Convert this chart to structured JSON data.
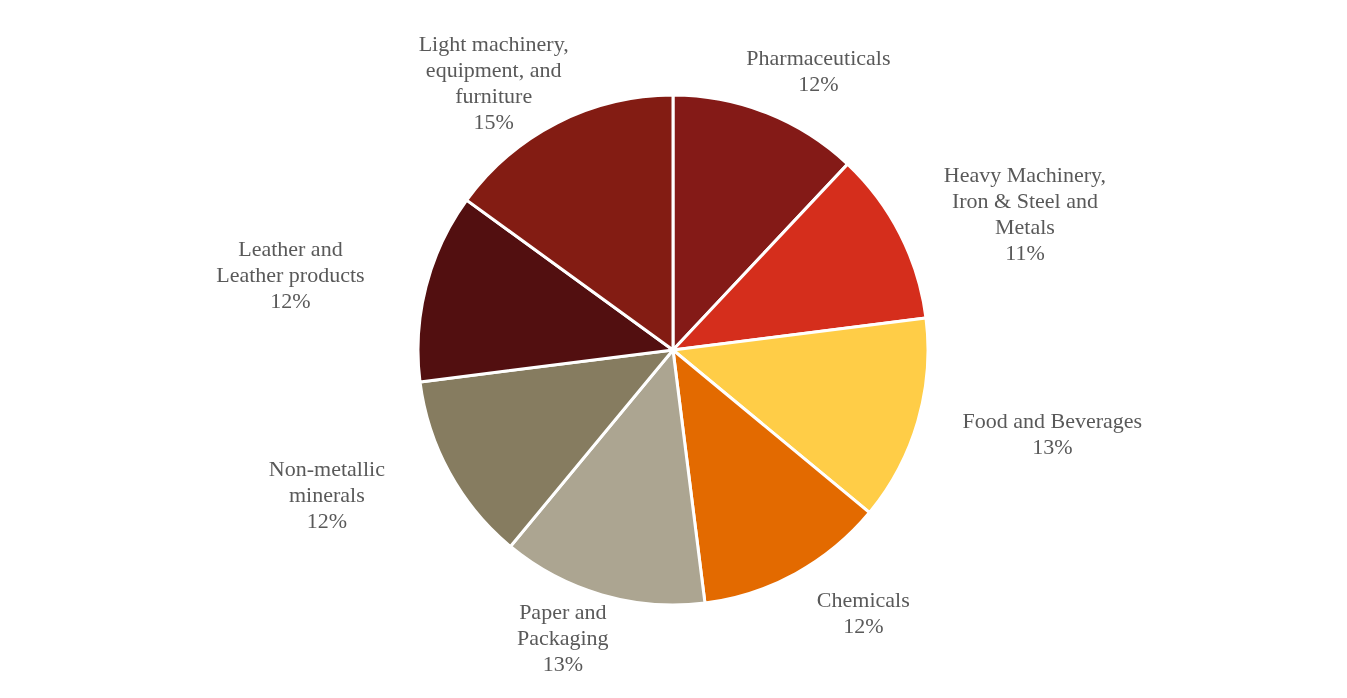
{
  "chart_data": {
    "type": "pie",
    "categories": [
      "Pharmaceuticals",
      "Heavy Machinery, Iron & Steel and Metals",
      "Food and Beverages",
      "Chemicals",
      "Paper and Packaging",
      "Non-metallic minerals",
      "Leather and Leather products",
      "Light machinery, equipment, and furniture"
    ],
    "values": [
      12,
      11,
      13,
      12,
      13,
      12,
      12,
      15
    ],
    "value_labels": [
      "12%",
      "11%",
      "13%",
      "12%",
      "13%",
      "12%",
      "12%",
      "15%"
    ],
    "colors": [
      "#841a17",
      "#d52e1c",
      "#ffcd47",
      "#e36a00",
      "#aca591",
      "#867c60",
      "#520f10",
      "#831c13"
    ]
  }
}
